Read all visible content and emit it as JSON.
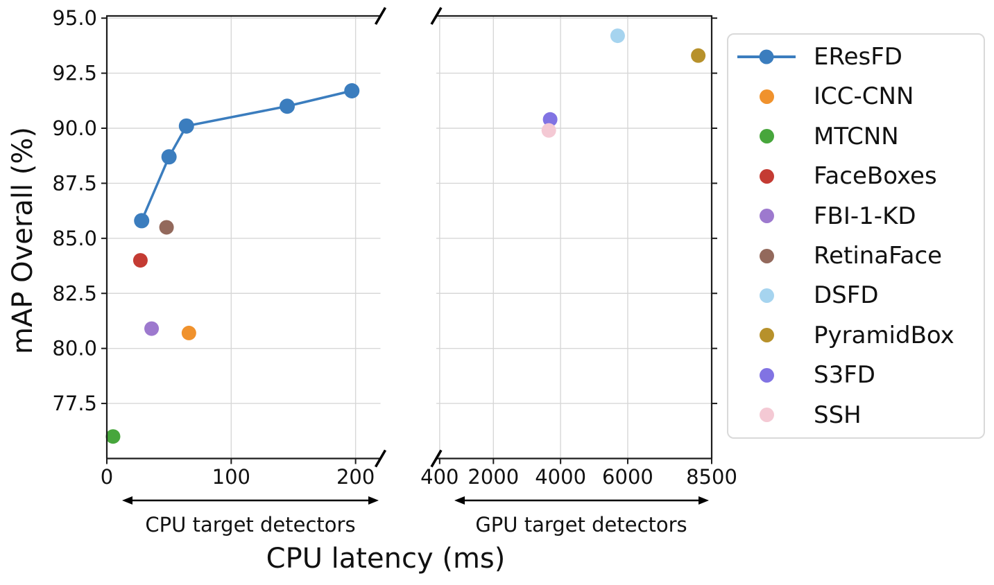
{
  "chart_data": {
    "type": "scatter",
    "title": "",
    "xlabel": "CPU latency (ms)",
    "ylabel": "mAP Overall (%)",
    "ylim": [
      75.0,
      95.1
    ],
    "grid": true,
    "legend_position": "right-outside",
    "broken_x_axis": true,
    "y_ticks": {
      "values": [
        77.5,
        80.0,
        82.5,
        85.0,
        87.5,
        90.0,
        92.5,
        95.0
      ],
      "labels": [
        "77.5",
        "80.0",
        "82.5",
        "85.0",
        "87.5",
        "90.0",
        "92.5",
        "95.0"
      ]
    },
    "x_panels": [
      {
        "id": "cpu",
        "xlim": [
          0,
          220
        ],
        "tick_values": [
          0,
          100,
          200
        ],
        "tick_labels": [
          "0",
          "100",
          "200"
        ],
        "annotation": "CPU target detectors"
      },
      {
        "id": "gpu",
        "xlim": [
          300,
          8500
        ],
        "tick_values": [
          400,
          2000,
          4000,
          6000,
          8500
        ],
        "tick_labels": [
          "400",
          "2000",
          "4000",
          "6000",
          "8500"
        ],
        "annotation": "GPU target detectors"
      }
    ],
    "series": [
      {
        "name": "EResFD",
        "color": "#3b7dbe",
        "panel": "cpu",
        "line": true,
        "points": [
          [
            28,
            85.8
          ],
          [
            50,
            88.7
          ],
          [
            64,
            90.1
          ],
          [
            145,
            91.0
          ],
          [
            197,
            91.7
          ]
        ]
      },
      {
        "name": "ICC-CNN",
        "color": "#f0922d",
        "panel": "cpu",
        "line": false,
        "points": [
          [
            66,
            80.7
          ]
        ]
      },
      {
        "name": "MTCNN",
        "color": "#47a63c",
        "panel": "cpu",
        "line": false,
        "points": [
          [
            5,
            76.0
          ]
        ]
      },
      {
        "name": "FaceBoxes",
        "color": "#c43b33",
        "panel": "cpu",
        "line": false,
        "points": [
          [
            27,
            84.0
          ]
        ]
      },
      {
        "name": "FBI-1-KD",
        "color": "#9d79ce",
        "panel": "cpu",
        "line": false,
        "points": [
          [
            36,
            80.9
          ]
        ]
      },
      {
        "name": "RetinaFace",
        "color": "#93695c",
        "panel": "cpu",
        "line": false,
        "points": [
          [
            48,
            85.5
          ]
        ]
      },
      {
        "name": "DSFD",
        "color": "#a6d4ef",
        "panel": "gpu",
        "line": false,
        "points": [
          [
            5700,
            94.2
          ]
        ]
      },
      {
        "name": "PyramidBox",
        "color": "#b7912b",
        "panel": "gpu",
        "line": false,
        "points": [
          [
            8100,
            93.3
          ]
        ]
      },
      {
        "name": "S3FD",
        "color": "#8173e3",
        "panel": "gpu",
        "line": false,
        "points": [
          [
            3690,
            90.4
          ]
        ]
      },
      {
        "name": "SSH",
        "color": "#f4c9d4",
        "panel": "gpu",
        "line": false,
        "points": [
          [
            3650,
            89.9
          ]
        ]
      }
    ]
  }
}
